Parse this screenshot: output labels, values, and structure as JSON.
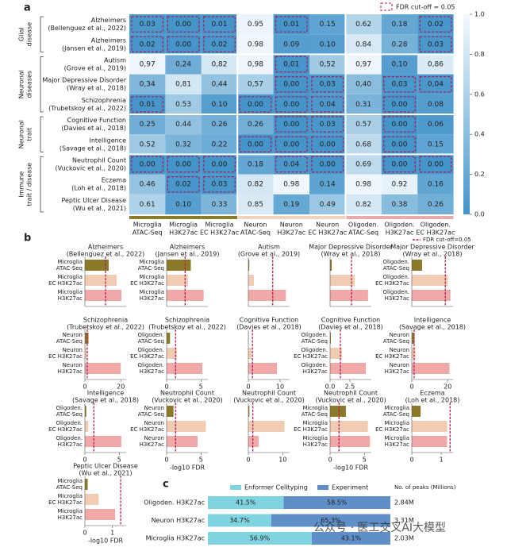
{
  "chart_data": [
    {
      "type": "heatmap",
      "letter": "a",
      "legend": "FDR cut-off = 0.05",
      "cutoff": 0.05,
      "box_color": "#a01f5c",
      "colormap": [
        "#4594ca",
        "#9cc8e3",
        "#f4f9fd"
      ],
      "columns": [
        [
          "Microglia",
          "ATAC-Seq"
        ],
        [
          "Microglia",
          "H3K27ac"
        ],
        [
          "Microglia",
          "EC H3K27ac"
        ],
        [
          "Neuron",
          "ATAC-Seq"
        ],
        [
          "Neuron",
          "H3K27ac"
        ],
        [
          "Neuron",
          "EC H3K27ac"
        ],
        [
          "Oligoden.",
          "ATAC-Seq"
        ],
        [
          "Oligoden.",
          "H3K27ac"
        ],
        [
          "Oligoden.",
          "EC H3K27ac"
        ]
      ],
      "column_colors": [
        "#8c7a2b",
        "#8c7a2b",
        "#8c7a2b",
        "#efd3bd",
        "#efd3bd",
        "#efd3bd",
        "#eaa9ad",
        "#eaa9ad",
        "#eaa9ad"
      ],
      "zlim": [
        0,
        1
      ],
      "zticks": [
        {
          "value": 0,
          "label": "0.0"
        },
        0.2,
        0.4,
        0.6,
        0.8,
        {
          "value": 1,
          "label": "1.0"
        }
      ],
      "groups": [
        {
          "label": [
            "Glial",
            "disease"
          ],
          "rows": [
            {
              "label": [
                "Alzheimers",
                "(Bellenguez et al., 2022)"
              ],
              "values": [
                0.03,
                0,
                0.01,
                0.95,
                0.01,
                0.15,
                0.62,
                0.18,
                0.02
              ],
              "value_labels": [
                "0.03",
                "0.00",
                "0.01",
                "0.95",
                "0.01",
                "0.15",
                "0.62",
                "0.18",
                "0.02"
              ]
            },
            {
              "label": [
                "Alzheimers",
                "(Jansen et al., 2019)"
              ],
              "values": [
                0.02,
                0,
                0.02,
                0.98,
                0.09,
                0.1,
                0.84,
                0.28,
                0.03
              ],
              "value_labels": [
                "0.02",
                "0.00",
                "0.02",
                "0.98",
                "0.09",
                "0.10",
                "0.84",
                "0.28",
                "0.03"
              ]
            }
          ]
        },
        {
          "label": [
            "Neuronal",
            "diseases"
          ],
          "rows": [
            {
              "label": [
                "Autism",
                "(Grove et al., 2019)"
              ],
              "values": [
                0.97,
                0.24,
                0.82,
                0.98,
                0.01,
                0.52,
                0.97,
                0.1,
                0.86
              ],
              "value_labels": [
                "0,97",
                "0,24",
                "0,82",
                "0,98",
                "0,01",
                "0,52",
                "0,97",
                "0,10",
                "0,86"
              ]
            },
            {
              "label": [
                "Major Depressive Disorder",
                "(Wray et al., 2018)"
              ],
              "values": [
                0.34,
                0.81,
                0.44,
                0.57,
                0,
                0.03,
                0.4,
                0.03,
                0.04
              ],
              "value_labels": [
                "0,34",
                "0,81",
                "0,44",
                "0,57",
                "0,00",
                "0,03",
                "0,40",
                "0,03",
                "0,04"
              ]
            },
            {
              "label": [
                "Schizophrenia",
                "(Trubetskoy et al., 2022)"
              ],
              "values": [
                0.01,
                0.53,
                0.1,
                0,
                0,
                0.04,
                0.31,
                0,
                0.08
              ],
              "value_labels": [
                "0.01",
                "0.53",
                "0.10",
                "0.00",
                "0.00",
                "0.04",
                "0.31",
                "0.00",
                "0.08"
              ]
            }
          ]
        },
        {
          "label": [
            "Neuronal",
            "trait"
          ],
          "rows": [
            {
              "label": [
                "Cognitive Function",
                "(Davies et al., 2018)"
              ],
              "values": [
                0.25,
                0.44,
                0.26,
                0.26,
                0,
                0.03,
                0.57,
                0,
                0.06
              ],
              "value_labels": [
                "0.25",
                "0.44",
                "0.26",
                "0.26",
                "0.00",
                "0.03",
                "0.57",
                "0.00",
                "0.06"
              ]
            },
            {
              "label": [
                "Intelligence",
                "(Savage et al., 2018)"
              ],
              "values": [
                0.52,
                0.32,
                0.22,
                0,
                0,
                0,
                0.68,
                0,
                0.15
              ],
              "value_labels": [
                "0.52",
                "0.32",
                "0.22",
                "0.00",
                "0.00",
                "0.00",
                "0.68",
                "0.00",
                "0.15"
              ]
            }
          ]
        },
        {
          "label": [
            "Immune",
            "trait / disease"
          ],
          "rows": [
            {
              "label": [
                "Neutrophil Count",
                "(Vuckovic et al., 2020)"
              ],
              "values": [
                0,
                0,
                0,
                0.18,
                0.04,
                0,
                0.69,
                0,
                0
              ],
              "value_labels": [
                "0.00",
                "0.00",
                "0.00",
                "0.18",
                "0.04",
                "0.00",
                "0.69",
                "0.00",
                "0.00"
              ]
            },
            {
              "label": [
                "Eczema",
                "(Loh et al., 2018)"
              ],
              "values": [
                0.46,
                0.02,
                0.03,
                0.82,
                0.98,
                0.14,
                0.98,
                0.92,
                0.16
              ],
              "value_labels": [
                "0.46",
                "0.02",
                "0.03",
                "0.82",
                "0.98",
                "0.14",
                "0.98",
                "0.92",
                "0.16"
              ]
            },
            {
              "label": [
                "Peptic Ulcer Disease",
                "(Wu et al., 2021)"
              ],
              "values": [
                0.61,
                0.1,
                0.33,
                0.85,
                0.19,
                0.49,
                0.82,
                0.38,
                0.26
              ],
              "value_labels": [
                "0.61",
                "0.10",
                "0.33",
                "0.85",
                "0.19",
                "0.49",
                "0.82",
                "0.38",
                "0.26"
              ]
            }
          ]
        }
      ]
    },
    {
      "type": "bar-panels",
      "letter": "b",
      "legend": "FDR cut-off=0.05",
      "cutoff": 1.3,
      "cutoff_color": "#b4205a",
      "colors": [
        "#8c7a2b",
        "#f0cdb2",
        "#f0a8a8"
      ],
      "panels": [
        {
          "title": [
            "Alzheimers",
            "(Bellenguez et al., 2022)"
          ],
          "categories": [
            [
              "Microglia",
              "ATAC-Seq"
            ],
            [
              "Microglia",
              "EC H3K27ac"
            ],
            [
              "Microglia",
              "H3K27ac"
            ]
          ],
          "values": [
            1.5,
            2.0,
            2.3
          ],
          "xlim": [
            0,
            2.6
          ]
        },
        {
          "title": [
            "Alzheimers",
            "(Jansen et al., 2019)"
          ],
          "categories": [
            [
              "Microglia",
              "ATAC-Seq"
            ],
            [
              "Microglia",
              "EC H3K27ac"
            ],
            [
              "Microglia",
              "H3K27ac"
            ]
          ],
          "values": [
            1.7,
            1.5,
            2.6
          ],
          "xlim": [
            0,
            2.9
          ]
        },
        {
          "title": [
            "Autism",
            "(Grove et al., 2019)"
          ],
          "values": [
            0.05,
            0.3,
            2.0
          ],
          "xlim": [
            0,
            2.2
          ]
        },
        {
          "title": [
            "Major Depressive Disorder",
            "(Wray et al., 2018)"
          ],
          "values": [
            0.1,
            1.5,
            2.3
          ],
          "xlim": [
            0,
            2.5
          ]
        },
        {
          "title": [
            "Major Depressive Disorder",
            "(Wray et al., 2018)"
          ],
          "categories": [
            [
              "Oligoden.",
              "ATAC-Seq"
            ],
            [
              "Oligoden.",
              "EC H3K27ac"
            ],
            [
              "Oligoden.",
              "H3K27ac"
            ]
          ],
          "values": [
            0.4,
            1.4,
            1.5
          ],
          "xlim": [
            0,
            1.6
          ]
        },
        {
          "title": [
            "Schizophrenia",
            "(Trubetskoy et al., 2022)"
          ],
          "categories": [
            [
              "Neuron",
              "ATAC-Seq"
            ],
            [
              "Neuron",
              "EC H3K27ac"
            ],
            [
              "Neuron",
              "H3K27ac"
            ]
          ],
          "values": [
            2,
            1,
            20
          ],
          "xlim": [
            0,
            23
          ],
          "xticks": [
            0,
            20
          ]
        },
        {
          "title": [
            "Schizophrenia",
            "(Trubetskoy et al., 2022)"
          ],
          "categories": [
            [
              "Oligoden.",
              "ATAC-Seq"
            ],
            [
              "Oligoden.",
              "EC H3K27ac"
            ],
            [
              "Oligoden.",
              "H3K27ac"
            ]
          ],
          "values": [
            0.5,
            1.5,
            5.2
          ],
          "xlim": [
            0,
            6
          ],
          "xticks": [
            0,
            5
          ]
        },
        {
          "title": [
            "Cognitive Function",
            "(Davies et al., 2018)"
          ],
          "values": [
            0.1,
            1,
            9
          ],
          "xlim": [
            0,
            13
          ],
          "xticks": [
            0,
            10
          ]
        },
        {
          "title": [
            "Cognitive Function",
            "(Davies et al., 2018)"
          ],
          "categories": [
            [
              "Oligoden.",
              "ATAC-Seq"
            ],
            [
              "Oligoden.",
              "EC H3K27ac"
            ],
            [
              "Oligoden.",
              "H3K27ac"
            ]
          ],
          "values": [
            0.1,
            1.5,
            4.5
          ],
          "xlim": [
            0,
            5.2
          ],
          "xticks": [
            {
              "value": 0,
              "label": "0.0"
            },
            2.5
          ]
        },
        {
          "title": [
            "Intelligence",
            "(Savage et al., 2018)"
          ],
          "categories": [
            [
              "Neuron",
              "ATAC-Seq"
            ],
            [
              "Neuron",
              "EC H3K27ac"
            ],
            [
              "Neuron",
              "H3K27ac"
            ]
          ],
          "values": [
            1.5,
            2,
            21
          ],
          "xlim": [
            0,
            23
          ],
          "xticks": [
            0,
            20
          ]
        },
        {
          "title": [
            "Intelligence",
            "(Savage et al., 2018)"
          ],
          "categories": [
            [
              "Oligoden.",
              "ATAC-Seq"
            ],
            [
              "Oligoden.",
              "EC H3K27ac"
            ],
            [
              "Oligoden.",
              "H3K27ac"
            ]
          ],
          "values": [
            0.2,
            0.5,
            5.3
          ],
          "xlim": [
            0,
            6
          ],
          "xticks": [
            0,
            5
          ]
        },
        {
          "title": [
            "Neutrophil Count",
            "(Vuckovic et al., 2020)"
          ],
          "categories": [
            [
              "Neuron",
              "ATAC-Seq"
            ],
            [
              "Neuron",
              "EC H3K27ac"
            ],
            [
              "Neuron",
              "H3K27ac"
            ]
          ],
          "values": [
            1.0,
            5.7,
            4.5
          ],
          "xlim": [
            0,
            6
          ],
          "xticks": [
            0,
            5
          ],
          "xlabel": "-log10 FDR"
        },
        {
          "title": [
            "Neutrophil Count",
            "(Vuckovic et al., 2020)"
          ],
          "values": [
            0.3,
            10.5,
            3
          ],
          "xlim": [
            0,
            12
          ],
          "xticks": [
            0,
            10
          ]
        },
        {
          "title": [
            "Neutrophil Count",
            "(Vuckovic et al., 2020)"
          ],
          "categories": [
            [
              "Microglia",
              "ATAC-Seq"
            ],
            [
              "Microglia",
              "EC H3K27ac"
            ],
            [
              "Microglia",
              "H3K27ac"
            ]
          ],
          "values": [
            2.3,
            5.5,
            5.8
          ],
          "xlim": [
            0,
            6
          ],
          "xticks": [
            0,
            5
          ],
          "xlabel": "-log10 FDR"
        },
        {
          "title": [
            "Eczema",
            "(Loh et al., 2018)"
          ],
          "categories": [
            [
              "Microglia",
              "ATAC-Seq"
            ],
            [
              "Microglia",
              "EC H3K27ac"
            ],
            [
              "Microglia",
              "H3K27ac"
            ]
          ],
          "values": [
            0.3,
            1.2,
            1.2
          ],
          "xlim": [
            0,
            1.4
          ],
          "xticks": [
            0,
            1
          ]
        },
        {
          "title": [
            "Peptic Ulcer Disease",
            "(Wu et al., 2021)"
          ],
          "categories": [
            [
              "Microglia",
              "ATAC-Seq"
            ],
            [
              "Microglia",
              "EC H3K27ac"
            ],
            [
              "Microglia",
              "H3K27ac"
            ]
          ],
          "values": [
            0.1,
            0.5,
            1.1
          ],
          "xlim": [
            0,
            1.5
          ],
          "xticks": [
            0,
            1
          ],
          "xlabel": "-log10 FDR"
        }
      ]
    },
    {
      "type": "stacked-bar",
      "letter": "c",
      "orientation": "horizontal",
      "categories": [
        "Oligoden. H3K27ac",
        "Neuron H3K27ac",
        "Microglia H3K27ac"
      ],
      "xlim": [
        0,
        100
      ],
      "series": [
        {
          "name": "Enformer Celltyping",
          "color": "#80d3e0",
          "values": [
            41.5,
            34.7,
            56.9
          ],
          "value_labels": [
            "41.5%",
            "34.7%",
            "56.9%"
          ]
        },
        {
          "name": "Experiment",
          "color": "#5f8fc9",
          "values": [
            58.5,
            65.3,
            43.1
          ],
          "value_labels": [
            "58.5%",
            "65.3%",
            "43.1%"
          ]
        }
      ],
      "peaks": {
        "title": "No. of peaks (Millions)",
        "values": [
          2.84,
          3.31,
          2.03
        ],
        "value_labels": [
          "2.84M",
          "3.31M",
          "2.03M"
        ]
      }
    },
    {
      "type": "watermark",
      "text": "公众号 · 医工交叉AI大模型"
    }
  ]
}
